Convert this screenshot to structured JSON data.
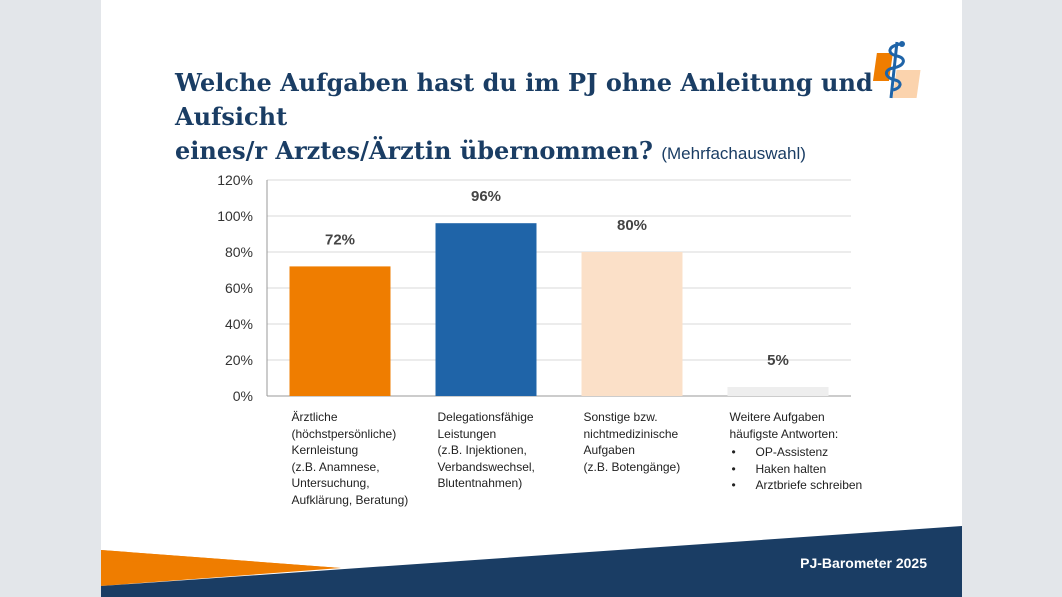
{
  "title": {
    "line1": "Welche Aufgaben hast du im PJ ohne Anleitung und Aufsicht",
    "line2": "eines/r Arztes/Ärztin übernommen?",
    "subtitle": "(Mehrfachauswahl)"
  },
  "logo": {
    "name": "caduceus-logo"
  },
  "footer": {
    "label": "PJ-Barometer 2025"
  },
  "colors": {
    "dark_blue": "#1a3d64",
    "orange": "#ef7d00",
    "blue": "#1f64a8",
    "peach": "#fbe0c8",
    "light_gray": "#eeeeee"
  },
  "chart_data": {
    "type": "bar",
    "ylim": [
      0,
      120
    ],
    "yticks": [
      "0%",
      "20%",
      "40%",
      "60%",
      "80%",
      "100%",
      "120%"
    ],
    "ytick_values": [
      0,
      20,
      40,
      60,
      80,
      100,
      120
    ],
    "grid": true,
    "values": [
      72,
      96,
      80,
      5
    ],
    "value_labels": [
      "72%",
      "96%",
      "80%",
      "5%"
    ],
    "bar_colors": [
      "#ef7d00",
      "#1f64a8",
      "#fbe0c8",
      "#eeeeee"
    ],
    "categories": [
      {
        "lines": [
          "Ärztliche",
          "(höchstpersönliche)",
          "Kernleistung",
          "(z.B. Anamnese,",
          "Untersuchung,",
          "Aufklärung, Beratung)"
        ]
      },
      {
        "lines": [
          "Delegationsfähige",
          "Leistungen",
          "(z.B. Injektionen,",
          "Verbandswechsel,",
          "Blutentnahmen)"
        ]
      },
      {
        "lines": [
          "Sonstige bzw.",
          "nichtmedizinische",
          "Aufgaben",
          "(z.B. Botengänge)"
        ]
      },
      {
        "lines": [
          "Weitere Aufgaben",
          "häufigste Antworten:"
        ],
        "bullets": [
          "OP-Assistenz",
          "Haken halten",
          "Arztbriefe schreiben"
        ]
      }
    ]
  }
}
